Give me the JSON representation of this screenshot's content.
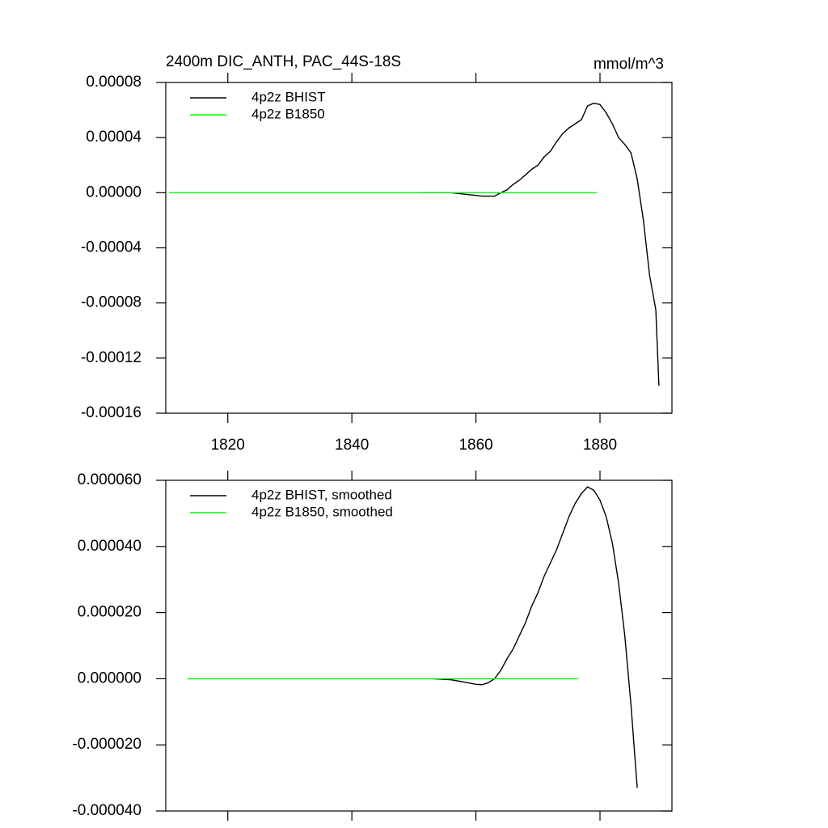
{
  "chart_data": [
    {
      "type": "line",
      "title": "2400m DIC_ANTH, PAC_44S-18S",
      "units": "mmol/m^3",
      "xlim": [
        1810,
        1891.6
      ],
      "xticks": [
        1820,
        1840,
        1860,
        1880
      ],
      "ylim": [
        -0.00016,
        8e-05
      ],
      "yticks": [
        {
          "value": -0.00016,
          "label": "-0.00016"
        },
        {
          "value": -0.00012,
          "label": "-0.00012"
        },
        {
          "value": -8e-05,
          "label": "-0.00008"
        },
        {
          "value": -4e-05,
          "label": "-0.00004"
        },
        {
          "value": 0,
          "label": "0.00000"
        },
        {
          "value": 4e-05,
          "label": "0.00004"
        },
        {
          "value": 8e-05,
          "label": "0.00008"
        }
      ],
      "legend": "upper left",
      "series": [
        {
          "name": "4p2z BHIST",
          "color": "#000000",
          "x": [
            1851,
            1856,
            1858,
            1860,
            1861,
            1863,
            1864,
            1865,
            1866,
            1867,
            1868,
            1869,
            1870,
            1871,
            1872,
            1873,
            1874,
            1875,
            1876,
            1877,
            1878,
            1879,
            1880,
            1881,
            1882,
            1883,
            1884,
            1885,
            1886,
            1887,
            1888,
            1889,
            1889.5
          ],
          "values": [
            0,
            0,
            -1e-06,
            -2e-06,
            -2.5e-06,
            -2.5e-06,
            0,
            2e-06,
            6e-06,
            9e-06,
            1.3e-05,
            1.7e-05,
            2e-05,
            2.6e-05,
            3e-05,
            3.7e-05,
            4.3e-05,
            4.7e-05,
            5e-05,
            5.3e-05,
            6.3e-05,
            6.5e-05,
            6.4e-05,
            5.8e-05,
            5e-05,
            4e-05,
            3.5e-05,
            2.9e-05,
            1e-05,
            -2e-05,
            -6e-05,
            -8.5e-05,
            -0.00014
          ]
        },
        {
          "name": "4p2z B1850",
          "color": "#00ff00",
          "x": [
            1810.5,
            1879.5
          ],
          "values": [
            0,
            0
          ]
        }
      ]
    },
    {
      "type": "line",
      "xlim": [
        1810,
        1891.6
      ],
      "xticks": [
        1820,
        1840,
        1860,
        1880
      ],
      "ylim": [
        -4e-05,
        6e-05
      ],
      "yticks": [
        {
          "value": -4e-05,
          "label": "-0.000040"
        },
        {
          "value": -2e-05,
          "label": "-0.000020"
        },
        {
          "value": 0,
          "label": "0.000000"
        },
        {
          "value": 2e-05,
          "label": "0.000020"
        },
        {
          "value": 4e-05,
          "label": "0.000040"
        },
        {
          "value": 6e-05,
          "label": "0.000060"
        }
      ],
      "legend": "upper left",
      "series": [
        {
          "name": "4p2z BHIST, smoothed",
          "color": "#000000",
          "x": [
            1853,
            1856,
            1858,
            1860,
            1861,
            1862,
            1863,
            1864,
            1865,
            1866,
            1867,
            1868,
            1869,
            1870,
            1871,
            1872,
            1873,
            1874,
            1875,
            1876,
            1877,
            1878,
            1879,
            1880,
            1881,
            1882,
            1883,
            1884,
            1885,
            1886
          ],
          "values": [
            0,
            -3e-07,
            -1e-06,
            -1.7e-06,
            -1.8e-06,
            -1.2e-06,
            0,
            2.5e-06,
            6e-06,
            9e-06,
            1.3e-05,
            1.7e-05,
            2.2e-05,
            2.6e-05,
            3.1e-05,
            3.5e-05,
            3.9e-05,
            4.4e-05,
            4.9e-05,
            5.3e-05,
            5.6e-05,
            5.8e-05,
            5.7e-05,
            5.4e-05,
            4.9e-05,
            4.1e-05,
            2.9e-05,
            1.3e-05,
            -8e-06,
            -3.3e-05
          ]
        },
        {
          "name": "4p2z B1850, smoothed",
          "color": "#00ff00",
          "x": [
            1813.5,
            1876.5
          ],
          "values": [
            0,
            0
          ]
        }
      ]
    }
  ]
}
